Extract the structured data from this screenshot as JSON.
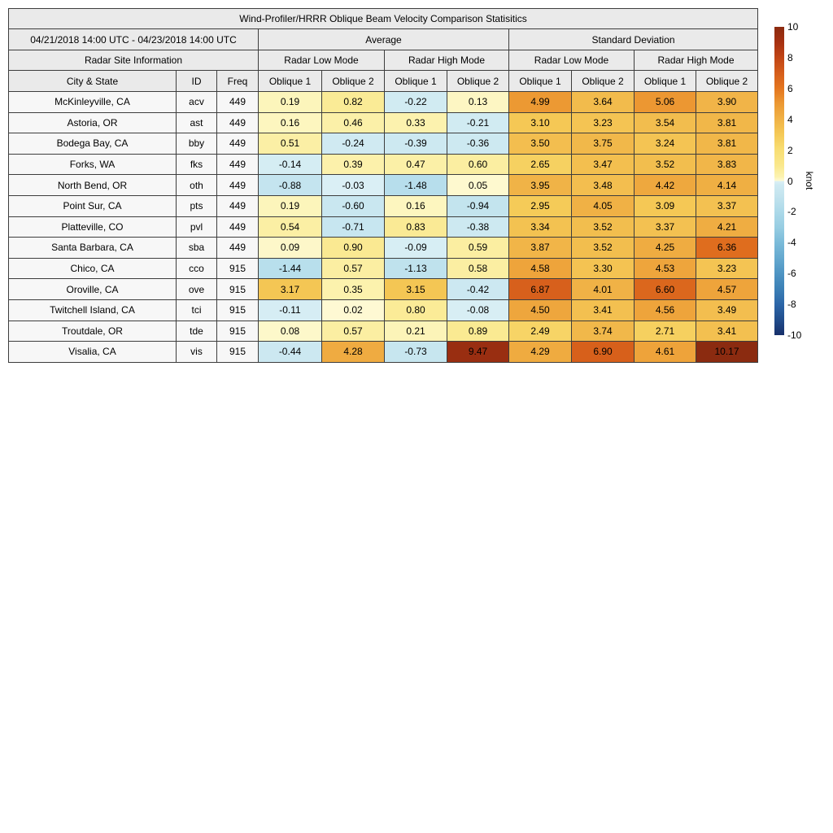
{
  "title": "Wind-Profiler/HRRR Oblique Beam Velocity Comparison Statisitics",
  "table": {
    "date_range": "04/21/2018 14:00 UTC - 04/23/2018 14:00 UTC",
    "group_average": "Average",
    "group_stddev": "Standard Deviation",
    "site_info_header": "Radar Site Information",
    "mode_headers": [
      "Radar Low Mode",
      "Radar High Mode",
      "Radar Low Mode",
      "Radar High Mode"
    ],
    "column_headers": [
      "City & State",
      "ID",
      "Freq",
      "Oblique 1",
      "Oblique 2",
      "Oblique 1",
      "Oblique 2",
      "Oblique 1",
      "Oblique 2",
      "Oblique 1",
      "Oblique 2"
    ]
  },
  "colorbar": {
    "label": "knot",
    "ticks": [
      10,
      8,
      6,
      4,
      2,
      0,
      -2,
      -4,
      -6,
      -8,
      -10
    ],
    "min": -10,
    "max": 10,
    "positive_stops": [
      [
        0,
        "#FEFAD6"
      ],
      [
        0.25,
        "#FCF3B2"
      ],
      [
        1,
        "#FAE88D"
      ],
      [
        2,
        "#F8DE74"
      ],
      [
        3,
        "#F5CA57"
      ],
      [
        4,
        "#F0B246"
      ],
      [
        5,
        "#EC9933"
      ],
      [
        6,
        "#E4761F"
      ],
      [
        7,
        "#D55D1B"
      ],
      [
        8,
        "#C14515"
      ],
      [
        9,
        "#A63011"
      ],
      [
        10,
        "#8B2B10"
      ]
    ],
    "negative_stops": [
      [
        0,
        "#DCF0F5"
      ],
      [
        0.25,
        "#CFEAF2"
      ],
      [
        1,
        "#C2E3EE"
      ],
      [
        2,
        "#ACD9E9"
      ],
      [
        3,
        "#97CDE2"
      ],
      [
        4,
        "#7BBBD9"
      ],
      [
        5,
        "#65A9CF"
      ],
      [
        6,
        "#4E94C3"
      ],
      [
        7,
        "#3C80B6"
      ],
      [
        8,
        "#2C66A8"
      ],
      [
        9,
        "#214D8C"
      ],
      [
        10,
        "#17306A"
      ]
    ]
  },
  "chart_data": {
    "type": "heatmap",
    "title": "Wind-Profiler/HRRR Oblique Beam Velocity Comparison Statisitics",
    "subtitle": "04/21/2018 14:00 UTC - 04/23/2018 14:00 UTC",
    "units": "knot",
    "value_range": [
      -10,
      10
    ],
    "columns": [
      "Average Radar Low Mode Oblique 1",
      "Average Radar Low Mode Oblique 2",
      "Average Radar High Mode Oblique 1",
      "Average Radar High Mode Oblique 2",
      "Standard Deviation Radar Low Mode Oblique 1",
      "Standard Deviation Radar Low Mode Oblique 2",
      "Standard Deviation Radar High Mode Oblique 1",
      "Standard Deviation Radar High Mode Oblique 2"
    ],
    "rows": [
      {
        "city": "McKinleyville, CA",
        "id": "acv",
        "freq": "449",
        "values": [
          0.19,
          0.82,
          -0.22,
          0.13,
          4.99,
          3.64,
          5.06,
          3.9
        ]
      },
      {
        "city": "Astoria, OR",
        "id": "ast",
        "freq": "449",
        "values": [
          0.16,
          0.46,
          0.33,
          -0.21,
          3.1,
          3.23,
          3.54,
          3.81
        ]
      },
      {
        "city": "Bodega Bay, CA",
        "id": "bby",
        "freq": "449",
        "values": [
          0.51,
          -0.24,
          -0.39,
          -0.36,
          3.5,
          3.75,
          3.24,
          3.81
        ]
      },
      {
        "city": "Forks, WA",
        "id": "fks",
        "freq": "449",
        "values": [
          -0.14,
          0.39,
          0.47,
          0.6,
          2.65,
          3.47,
          3.52,
          3.83
        ]
      },
      {
        "city": "North Bend, OR",
        "id": "oth",
        "freq": "449",
        "values": [
          -0.88,
          -0.03,
          -1.48,
          0.05,
          3.95,
          3.48,
          4.42,
          4.14
        ]
      },
      {
        "city": "Point Sur, CA",
        "id": "pts",
        "freq": "449",
        "values": [
          0.19,
          -0.6,
          0.16,
          -0.94,
          2.95,
          4.05,
          3.09,
          3.37
        ]
      },
      {
        "city": "Platteville, CO",
        "id": "pvl",
        "freq": "449",
        "values": [
          0.54,
          -0.71,
          0.83,
          -0.38,
          3.34,
          3.52,
          3.37,
          4.21
        ]
      },
      {
        "city": "Santa Barbara, CA",
        "id": "sba",
        "freq": "449",
        "values": [
          0.09,
          0.9,
          -0.09,
          0.59,
          3.87,
          3.52,
          4.25,
          6.36
        ]
      },
      {
        "city": "Chico, CA",
        "id": "cco",
        "freq": "915",
        "values": [
          -1.44,
          0.57,
          -1.13,
          0.58,
          4.58,
          3.3,
          4.53,
          3.23
        ]
      },
      {
        "city": "Oroville, CA",
        "id": "ove",
        "freq": "915",
        "values": [
          3.17,
          0.35,
          3.15,
          -0.42,
          6.87,
          4.01,
          6.6,
          4.57
        ]
      },
      {
        "city": "Twitchell Island, CA",
        "id": "tci",
        "freq": "915",
        "values": [
          -0.11,
          0.02,
          0.8,
          -0.08,
          4.5,
          3.41,
          4.56,
          3.49
        ]
      },
      {
        "city": "Troutdale, OR",
        "id": "tde",
        "freq": "915",
        "values": [
          0.08,
          0.57,
          0.21,
          0.89,
          2.49,
          3.74,
          2.71,
          3.41
        ]
      },
      {
        "city": "Visalia, CA",
        "id": "vis",
        "freq": "915",
        "values": [
          -0.44,
          4.28,
          -0.73,
          9.47,
          4.29,
          6.9,
          4.61,
          10.17
        ]
      }
    ]
  }
}
